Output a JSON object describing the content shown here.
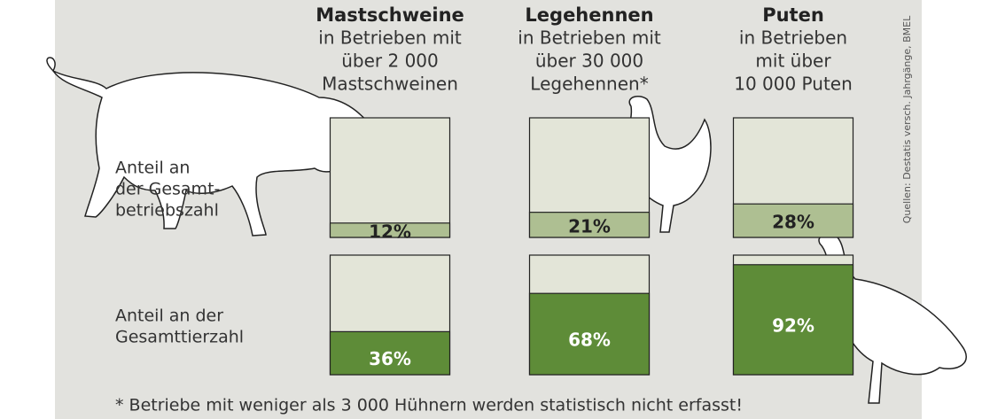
{
  "chart_data": {
    "type": "fill",
    "ylim": [
      0,
      100
    ],
    "box_color": "#e3e5d8",
    "columns": [
      {
        "title": "Mastschweine",
        "lines": [
          "in Betrieben mit",
          "über 2 000",
          "Mastschweinen"
        ]
      },
      {
        "title": "Legehennen",
        "lines": [
          "in Betrieben mit",
          "über 30 000",
          "Legehennen*"
        ]
      },
      {
        "title": "Puten",
        "lines": [
          "in Betrieben",
          "mit über",
          "10 000 Puten"
        ]
      }
    ],
    "rows": [
      {
        "label_lines": [
          "Anteil an",
          "der Gesamt-",
          "betriebszahl"
        ],
        "color": "#aebf92",
        "values": [
          12,
          21,
          28
        ],
        "value_labels": [
          "12%",
          "21%",
          "28%"
        ]
      },
      {
        "label_lines": [
          "Anteil an der",
          "Gesamttierzahl"
        ],
        "color": "#5e8c38",
        "values": [
          36,
          68,
          92
        ],
        "value_labels": [
          "36%",
          "68%",
          "92%"
        ]
      }
    ],
    "footnote": "* Betriebe mit weniger als 3 000 Hühnern werden statistisch nicht erfasst!",
    "source": "Quellen: Destatis versch. Jahrgänge, BMEL"
  }
}
